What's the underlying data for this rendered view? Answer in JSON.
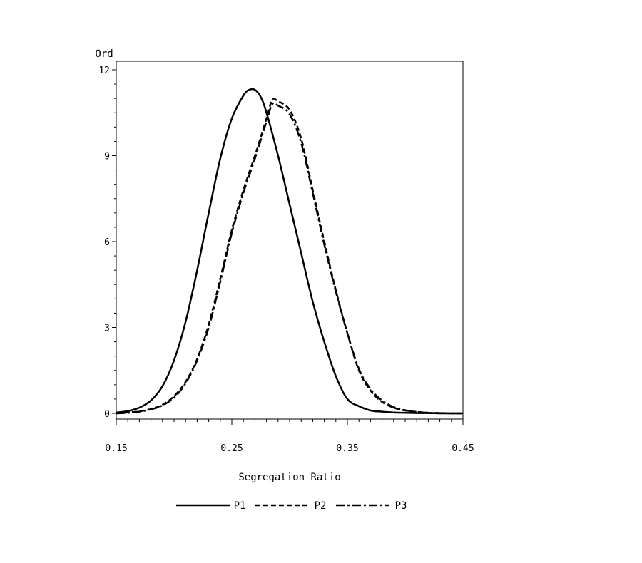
{
  "chart_data": {
    "type": "line",
    "title": "",
    "xlabel": "Segregation Ratio",
    "ylabel": "Ord",
    "xlim": [
      0.15,
      0.45
    ],
    "ylim": [
      0,
      12
    ],
    "xticks": [
      0.15,
      0.25,
      0.35,
      0.45
    ],
    "xtick_labels": [
      "0.15",
      "0.25",
      "0.35",
      "0.45"
    ],
    "yticks": [
      0,
      3,
      6,
      9,
      12
    ],
    "ytick_labels": [
      "0",
      "3",
      "6",
      "9",
      "12"
    ],
    "grid": false,
    "legend_position": "bottom",
    "series": [
      {
        "name": "P1",
        "line_style": "solid",
        "x": [
          0.15,
          0.16,
          0.17,
          0.18,
          0.19,
          0.2,
          0.21,
          0.22,
          0.23,
          0.24,
          0.25,
          0.26,
          0.265,
          0.27,
          0.275,
          0.28,
          0.29,
          0.3,
          0.31,
          0.32,
          0.33,
          0.34,
          0.35,
          0.36,
          0.37,
          0.38,
          0.39,
          0.4,
          0.41,
          0.42,
          0.43,
          0.44,
          0.45
        ],
        "y": [
          0.03,
          0.08,
          0.2,
          0.45,
          0.95,
          1.85,
          3.2,
          5.0,
          7.0,
          8.9,
          10.3,
          11.1,
          11.3,
          11.3,
          11.05,
          10.5,
          9.0,
          7.3,
          5.6,
          3.9,
          2.5,
          1.3,
          0.5,
          0.25,
          0.1,
          0.06,
          0.03,
          0.02,
          0.01,
          0.01,
          0.0,
          0.0,
          0.0
        ]
      },
      {
        "name": "P2",
        "line_style": "dashed",
        "x": [
          0.15,
          0.16,
          0.17,
          0.18,
          0.19,
          0.2,
          0.21,
          0.22,
          0.23,
          0.24,
          0.25,
          0.26,
          0.27,
          0.28,
          0.285,
          0.29,
          0.3,
          0.31,
          0.32,
          0.33,
          0.34,
          0.35,
          0.36,
          0.37,
          0.38,
          0.39,
          0.4,
          0.41,
          0.42,
          0.43,
          0.44,
          0.45
        ],
        "y": [
          0.0,
          0.03,
          0.07,
          0.15,
          0.3,
          0.6,
          1.1,
          1.9,
          3.1,
          4.7,
          6.4,
          7.8,
          9.0,
          10.3,
          10.95,
          10.9,
          10.6,
          9.6,
          7.8,
          6.0,
          4.3,
          2.8,
          1.5,
          0.8,
          0.4,
          0.2,
          0.1,
          0.05,
          0.02,
          0.01,
          0.0,
          0.0
        ]
      },
      {
        "name": "P3",
        "line_style": "dash-dot",
        "x": [
          0.15,
          0.16,
          0.17,
          0.18,
          0.19,
          0.2,
          0.21,
          0.22,
          0.23,
          0.24,
          0.25,
          0.26,
          0.27,
          0.28,
          0.285,
          0.29,
          0.3,
          0.31,
          0.32,
          0.33,
          0.34,
          0.35,
          0.36,
          0.37,
          0.38,
          0.39,
          0.4,
          0.41,
          0.42,
          0.43,
          0.44,
          0.45
        ],
        "y": [
          0.0,
          0.02,
          0.06,
          0.14,
          0.28,
          0.55,
          1.05,
          1.85,
          3.0,
          4.6,
          6.3,
          7.7,
          8.9,
          10.2,
          10.8,
          10.75,
          10.45,
          9.45,
          7.7,
          5.9,
          4.25,
          2.8,
          1.55,
          0.85,
          0.45,
          0.22,
          0.11,
          0.05,
          0.02,
          0.01,
          0.0,
          0.0
        ]
      }
    ]
  }
}
